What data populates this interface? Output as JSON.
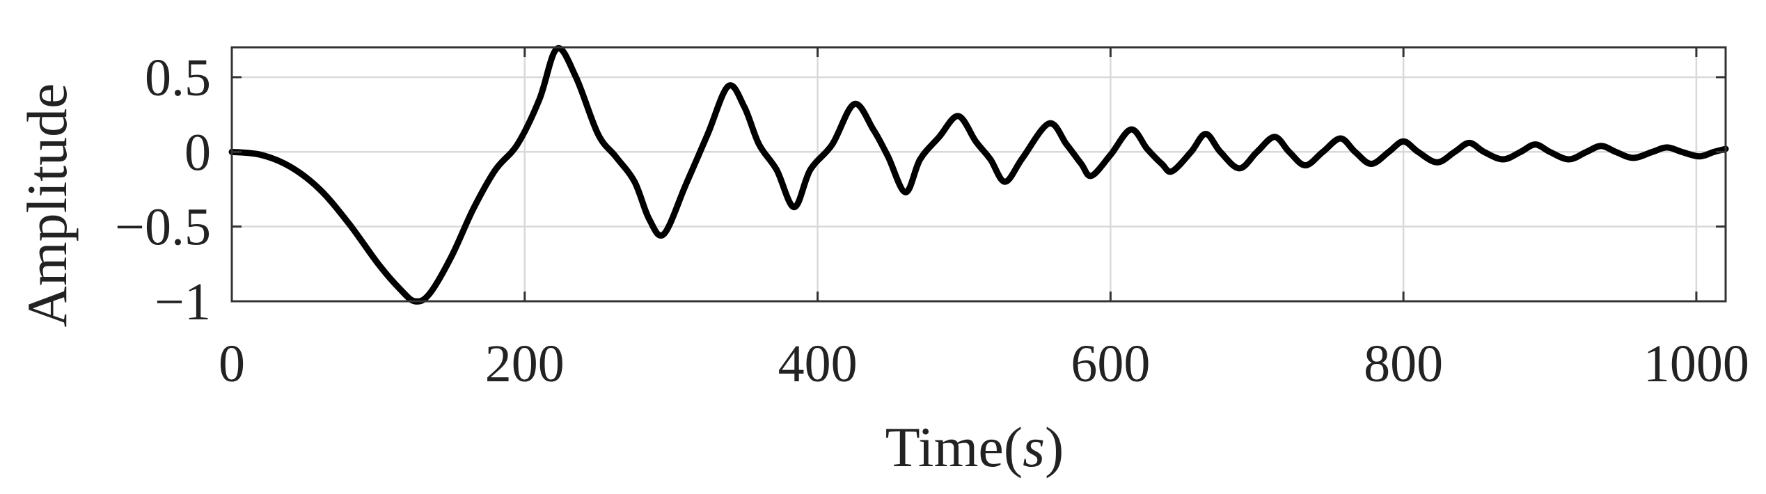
{
  "chart_data": {
    "type": "line",
    "xlabel_main": "Time(",
    "xlabel_unit": "s",
    "xlabel_close": ")",
    "ylabel": "Amplitude",
    "xlim": [
      0,
      1020
    ],
    "ylim": [
      -1,
      0.7
    ],
    "grid": true,
    "xticks": [
      0,
      200,
      400,
      600,
      800,
      1000
    ],
    "xtick_labels": [
      "0",
      "200",
      "400",
      "600",
      "800",
      "1000"
    ],
    "yticks": [
      -1,
      -0.5,
      0,
      0.5
    ],
    "ytick_labels": [
      "−1",
      "−0.5",
      "0",
      "0.5"
    ],
    "series": [
      {
        "color": "#000000",
        "x": [
          0,
          20,
          40,
          60,
          80,
          100,
          115,
          125,
          135,
          150,
          165,
          180,
          195,
          210,
          222,
          235,
          250,
          262,
          275,
          285,
          295,
          310,
          325,
          339,
          350,
          360,
          372,
          384,
          395,
          410,
          425,
          438,
          448,
          460,
          470,
          483,
          496,
          508,
          518,
          528,
          540,
          558,
          570,
          580,
          587,
          600,
          614,
          625,
          635,
          642,
          655,
          665,
          675,
          688,
          700,
          712,
          722,
          733,
          745,
          757,
          767,
          778,
          790,
          800,
          810,
          823,
          835,
          845,
          855,
          868,
          880,
          890,
          900,
          913,
          925,
          935,
          945,
          957,
          970,
          980,
          990,
          1002,
          1012,
          1020
        ],
        "y": [
          0,
          -0.02,
          -0.1,
          -0.25,
          -0.48,
          -0.75,
          -0.92,
          -1.0,
          -0.95,
          -0.7,
          -0.38,
          -0.12,
          0.05,
          0.35,
          0.69,
          0.5,
          0.12,
          -0.03,
          -0.2,
          -0.45,
          -0.55,
          -0.22,
          0.12,
          0.44,
          0.3,
          0.05,
          -0.12,
          -0.37,
          -0.12,
          0.05,
          0.32,
          0.15,
          -0.03,
          -0.27,
          -0.05,
          0.1,
          0.24,
          0.07,
          -0.05,
          -0.2,
          -0.04,
          0.19,
          0.05,
          -0.08,
          -0.16,
          -0.02,
          0.15,
          0.02,
          -0.08,
          -0.13,
          0.0,
          0.12,
          0.0,
          -0.11,
          0.0,
          0.1,
          0.0,
          -0.09,
          0.0,
          0.09,
          0.0,
          -0.08,
          0.0,
          0.07,
          0.0,
          -0.07,
          0.0,
          0.06,
          0.0,
          -0.05,
          0.0,
          0.05,
          0.0,
          -0.05,
          0.0,
          0.04,
          0.0,
          -0.04,
          0.0,
          0.03,
          0.0,
          -0.03,
          0.0,
          0.02
        ]
      }
    ]
  }
}
